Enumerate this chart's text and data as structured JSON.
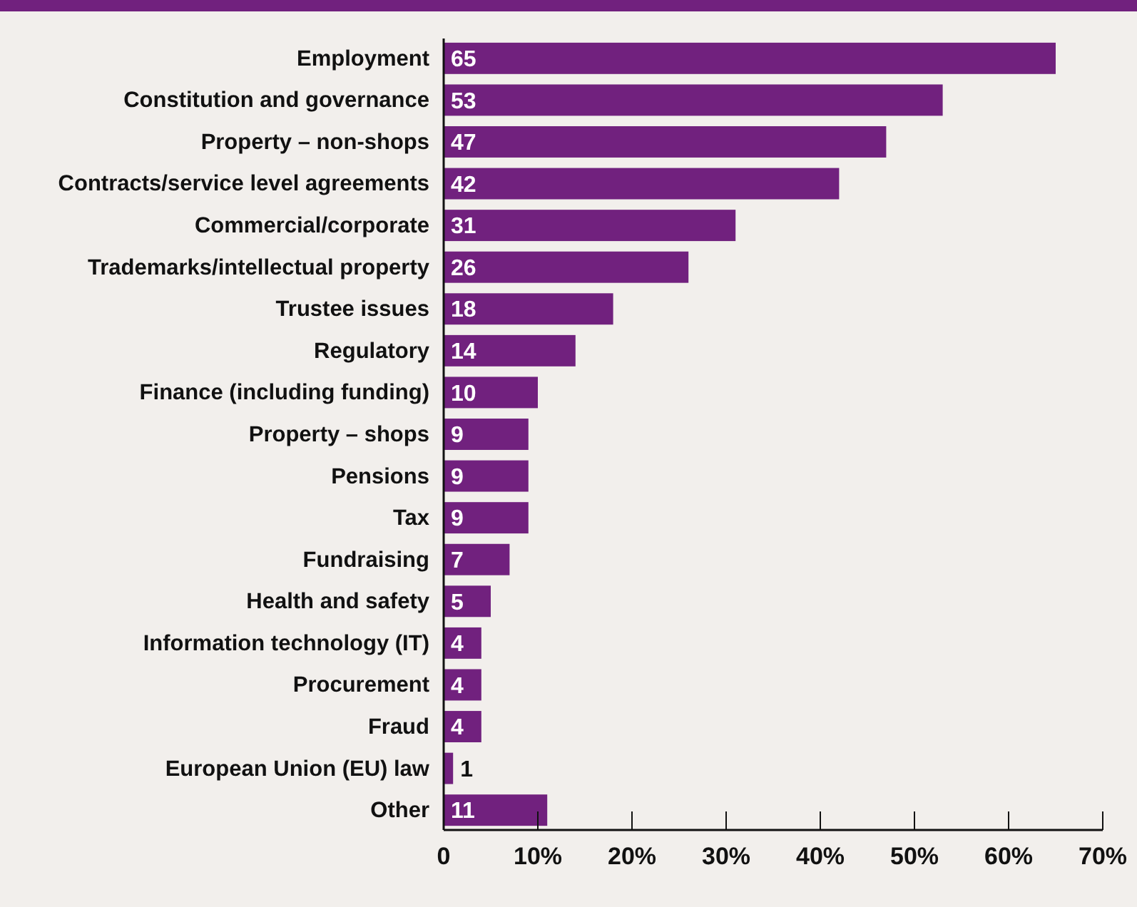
{
  "chart_data": {
    "type": "bar",
    "orientation": "horizontal",
    "categories": [
      "Employment",
      "Constitution and governance",
      "Property – non-shops",
      "Contracts/service level agreements",
      "Commercial/corporate",
      "Trademarks/intellectual property",
      "Trustee issues",
      "Regulatory",
      "Finance (including funding)",
      "Property – shops",
      "Pensions",
      "Tax",
      "Fundraising",
      "Health and safety",
      "Information technology (IT)",
      "Procurement",
      "Fraud",
      "European Union (EU) law",
      "Other"
    ],
    "values": [
      65,
      53,
      47,
      42,
      31,
      26,
      18,
      14,
      10,
      9,
      9,
      9,
      7,
      5,
      4,
      4,
      4,
      1,
      11
    ],
    "color": "#71217e",
    "data_labels": true,
    "grid": false,
    "xlim": [
      0,
      70
    ],
    "xticks": [
      0,
      {
        "value": 10,
        "label": "10%"
      },
      {
        "value": 20,
        "label": "20%"
      },
      {
        "value": 30,
        "label": "30%"
      },
      {
        "value": 40,
        "label": "40%"
      },
      {
        "value": 50,
        "label": "50%"
      },
      {
        "value": 60,
        "label": "60%"
      },
      {
        "value": 70,
        "label": "70%"
      }
    ]
  }
}
